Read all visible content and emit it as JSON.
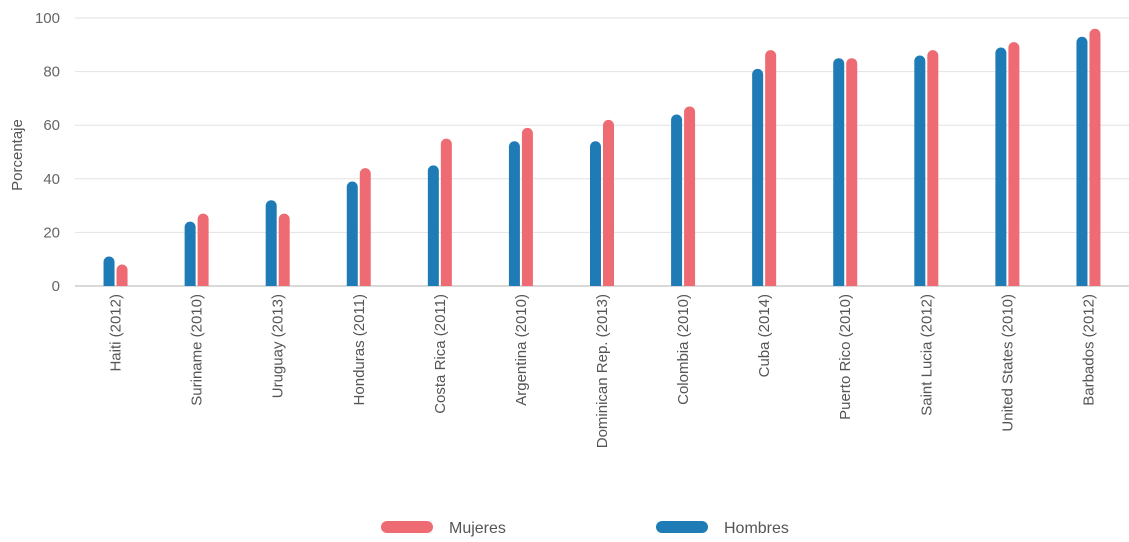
{
  "chart_data": {
    "type": "bar",
    "title": "",
    "xlabel": "",
    "ylabel": "Porcentaje",
    "ylim": [
      0,
      100
    ],
    "yticks": [
      "0",
      "20",
      "40",
      "60",
      "80",
      "100"
    ],
    "grid": true,
    "legend_position": "bottom",
    "categories": [
      "Haiti (2012)",
      "Suriname (2010)",
      "Uruguay (2013)",
      "Honduras (2011)",
      "Costa Rica (2011)",
      "Argentina (2010)",
      "Dominican Rep. (2013)",
      "Colombia (2010)",
      "Cuba (2014)",
      "Puerto Rico (2010)",
      "Saint Lucia (2012)",
      "United States (2010)",
      "Barbados (2012)"
    ],
    "series": [
      {
        "name": "Hombres",
        "color": "#1f7bb5",
        "values": [
          11,
          24,
          32,
          39,
          45,
          54,
          54,
          64,
          81,
          85,
          86,
          89,
          93
        ]
      },
      {
        "name": "Mujeres",
        "color": "#ef6b73",
        "values": [
          8,
          27,
          27,
          44,
          55,
          59,
          62,
          67,
          88,
          85,
          88,
          91,
          96
        ]
      }
    ],
    "legend": [
      {
        "label": "Mujeres",
        "color": "#ef6b73"
      },
      {
        "label": "Hombres",
        "color": "#1f7bb5"
      }
    ]
  }
}
